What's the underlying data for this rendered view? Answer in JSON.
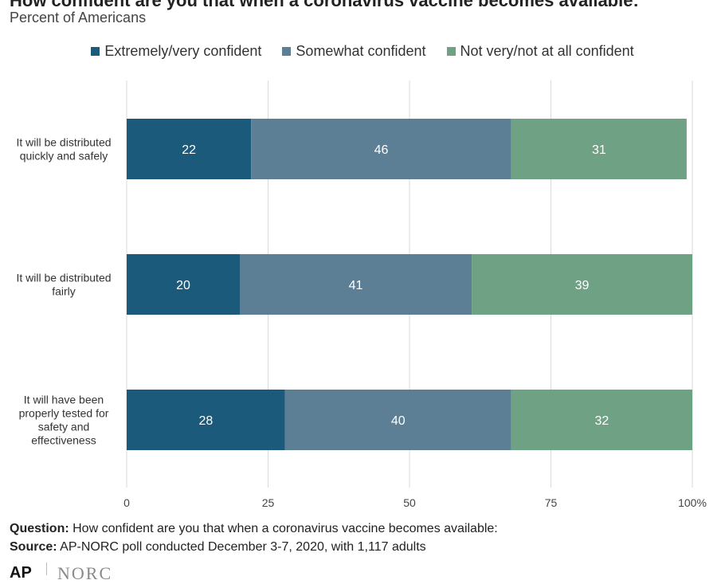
{
  "chart_data": {
    "type": "bar",
    "orientation": "horizontal",
    "stacked": true,
    "title": "How confident are you that when a coronavirus vaccine becomes available:",
    "subtitle": "Percent of Americans",
    "categories": [
      "It will be distributed quickly and safely",
      "It will be distributed fairly",
      "It will have been properly tested for safety and effectiveness"
    ],
    "category_lines": [
      [
        "It will be distributed",
        "quickly and safely"
      ],
      [
        "It will be distributed",
        "fairly"
      ],
      [
        "It will have been",
        "properly tested for",
        "safety and",
        "effectiveness"
      ]
    ],
    "series": [
      {
        "name": "Extremely/very confident",
        "color": "#1b5a7a",
        "values": [
          22,
          20,
          28
        ]
      },
      {
        "name": "Somewhat confident",
        "color": "#5c7f95",
        "values": [
          46,
          41,
          40
        ]
      },
      {
        "name": "Not very/not at all confident",
        "color": "#6fa185",
        "values": [
          31,
          39,
          32
        ]
      }
    ],
    "xlim": [
      0,
      100
    ],
    "xticks": [
      0,
      25,
      50,
      75,
      100
    ],
    "xtick_labels": [
      "0",
      "25",
      "50",
      "75",
      "100%"
    ],
    "grid": true,
    "legend_position": "top-center"
  },
  "footer": {
    "question_label": "Question:",
    "question_text": " How confident are you that when a coronavirus vaccine becomes available:",
    "source_label": "Source:",
    "source_text": " AP-NORC poll conducted December 3-7, 2020, with 1,117 adults"
  },
  "logos": {
    "ap": "AP",
    "norc": "NORC"
  }
}
